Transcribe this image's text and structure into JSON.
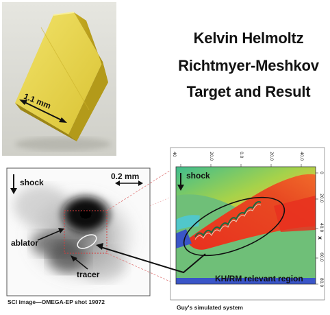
{
  "title": {
    "line1": "Kelvin Helmoltz",
    "line2": "Richtmyer-Meshkov",
    "line3": "Target and Result"
  },
  "target_photo": {
    "dimension_label": "1.1 mm"
  },
  "sci_image": {
    "shock_label": "shock",
    "scale_label": "0.2 mm",
    "ablator_label": "ablator",
    "tracer_label": "tracer",
    "caption": "SCI image—OMEGA-EP shot 19072"
  },
  "simulation": {
    "shock_label": "shock",
    "region_label": "KH/RM relevant region",
    "caption": "Guy's simulated system",
    "top_ticks": [
      "40",
      "20.0",
      "0.0",
      "20.0",
      "40.0"
    ],
    "right_ticks": [
      "0",
      "20.0",
      "40.0",
      "60.0",
      "80.0"
    ],
    "axis_label": "x"
  },
  "colors": {
    "target_yellow": "#e8d640",
    "sim_green": "#6fbf78",
    "sim_red": "#e8301e",
    "sim_blue": "#3a55c8",
    "connector_pink": "#e07a7a"
  }
}
